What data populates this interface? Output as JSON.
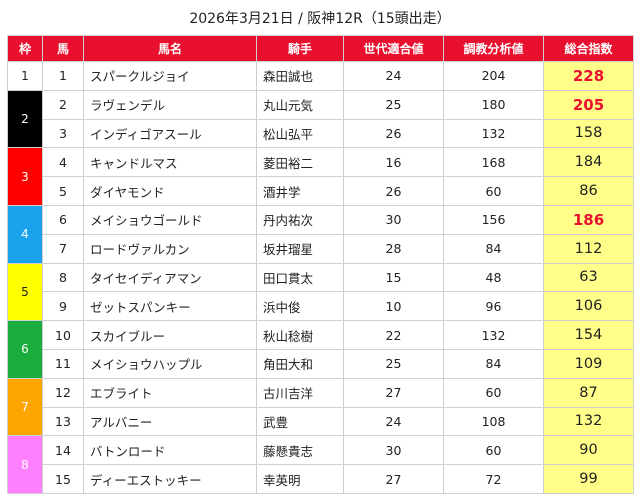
{
  "title": "2026年3月21日 / 阪神12R（15頭出走）",
  "headers": [
    "枠",
    "馬",
    "馬名",
    "騎手",
    "世代適合値",
    "調教分析値",
    "総合指数"
  ],
  "waku": [
    {
      "label": "1",
      "rows": 1,
      "bg": "#ffffff",
      "fg": "#222222"
    },
    {
      "label": "2",
      "rows": 2,
      "bg": "#000000",
      "fg": "#ffffff"
    },
    {
      "label": "3",
      "rows": 2,
      "bg": "#ff0000",
      "fg": "#ffffff"
    },
    {
      "label": "4",
      "rows": 2,
      "bg": "#1aa3ec",
      "fg": "#ffffff"
    },
    {
      "label": "5",
      "rows": 2,
      "bg": "#ffff00",
      "fg": "#222222"
    },
    {
      "label": "6",
      "rows": 2,
      "bg": "#1aac3c",
      "fg": "#ffffff"
    },
    {
      "label": "7",
      "rows": 2,
      "bg": "#ffa500",
      "fg": "#ffffff"
    },
    {
      "label": "8",
      "rows": 2,
      "bg": "#ff80ff",
      "fg": "#ffffff"
    }
  ],
  "horses": [
    {
      "num": "1",
      "name": "スパークルジョイ",
      "jockey": "森田誠也",
      "gen": "24",
      "train": "204",
      "score": "228",
      "hi": true
    },
    {
      "num": "2",
      "name": "ラヴェンデル",
      "jockey": "丸山元気",
      "gen": "25",
      "train": "180",
      "score": "205",
      "hi": true
    },
    {
      "num": "3",
      "name": "インディゴアスール",
      "jockey": "松山弘平",
      "gen": "26",
      "train": "132",
      "score": "158",
      "hi": false
    },
    {
      "num": "4",
      "name": "キャンドルマス",
      "jockey": "菱田裕二",
      "gen": "16",
      "train": "168",
      "score": "184",
      "hi": false
    },
    {
      "num": "5",
      "name": "ダイヤモンド",
      "jockey": "酒井学",
      "gen": "26",
      "train": "60",
      "score": "86",
      "hi": false
    },
    {
      "num": "6",
      "name": "メイショウゴールド",
      "jockey": "丹内祐次",
      "gen": "30",
      "train": "156",
      "score": "186",
      "hi": true
    },
    {
      "num": "7",
      "name": "ロードヴァルカン",
      "jockey": "坂井瑠星",
      "gen": "28",
      "train": "84",
      "score": "112",
      "hi": false
    },
    {
      "num": "8",
      "name": "タイセイディアマン",
      "jockey": "田口貫太",
      "gen": "15",
      "train": "48",
      "score": "63",
      "hi": false
    },
    {
      "num": "9",
      "name": "ゼットスパンキー",
      "jockey": "浜中俊",
      "gen": "10",
      "train": "96",
      "score": "106",
      "hi": false
    },
    {
      "num": "10",
      "name": "スカイブルー",
      "jockey": "秋山稔樹",
      "gen": "22",
      "train": "132",
      "score": "154",
      "hi": false
    },
    {
      "num": "11",
      "name": "メイショウハップル",
      "jockey": "角田大和",
      "gen": "25",
      "train": "84",
      "score": "109",
      "hi": false
    },
    {
      "num": "12",
      "name": "エブライト",
      "jockey": "古川吉洋",
      "gen": "27",
      "train": "60",
      "score": "87",
      "hi": false
    },
    {
      "num": "13",
      "name": "アルバニー",
      "jockey": "武豊",
      "gen": "24",
      "train": "108",
      "score": "132",
      "hi": false
    },
    {
      "num": "14",
      "name": "バトンロード",
      "jockey": "藤懸貴志",
      "gen": "30",
      "train": "60",
      "score": "90",
      "hi": false
    },
    {
      "num": "15",
      "name": "ディーエストッキー",
      "jockey": "幸英明",
      "gen": "27",
      "train": "72",
      "score": "99",
      "hi": false
    }
  ]
}
